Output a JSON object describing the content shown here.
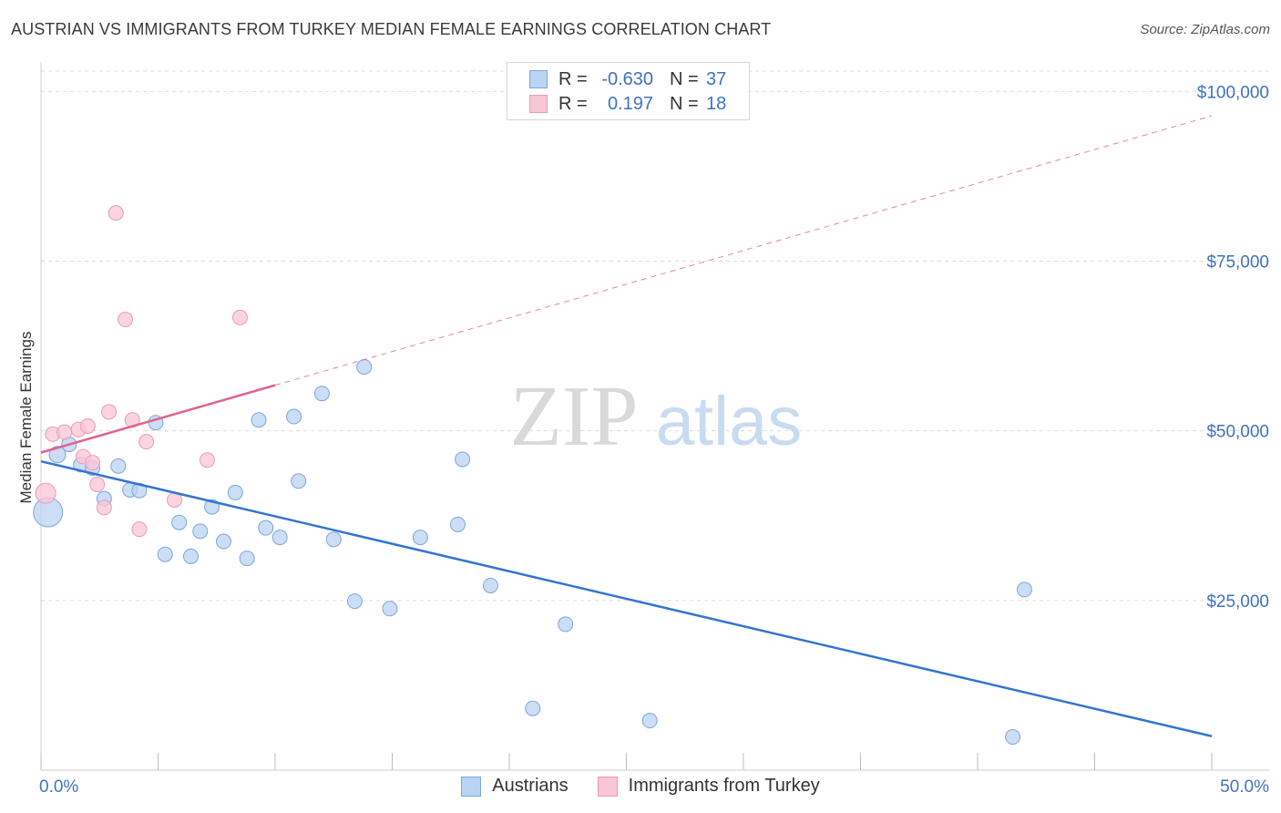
{
  "chart_data": {
    "type": "scatter",
    "title": "AUSTRIAN VS IMMIGRANTS FROM TURKEY MEDIAN FEMALE EARNINGS CORRELATION CHART",
    "source": "Source: ZipAtlas.com",
    "ylabel": "Median Female Earnings",
    "xlabel": "",
    "xlim": [
      0,
      50
    ],
    "ylim": [
      0,
      103000
    ],
    "x_tick_labels": [
      "0.0%",
      "50.0%"
    ],
    "y_ticks": [
      25000,
      50000,
      75000,
      100000
    ],
    "y_tick_labels": [
      "$25,000",
      "$50,000",
      "$75,000",
      "$100,000"
    ],
    "watermark": {
      "zip": "ZIP",
      "atlas": "atlas"
    },
    "legend": {
      "r_label": "R =",
      "n_label": "N =",
      "entries": [
        {
          "name": "Austrians",
          "r": "-0.630",
          "n": "37"
        },
        {
          "name": "Immigrants from Turkey",
          "r": "0.197",
          "n": "18"
        }
      ]
    },
    "colors": {
      "austrians_fill": "#b9d3f2",
      "austrians_stroke": "#7ea6dc",
      "austrians_line": "#3375d1",
      "turkey_fill": "#f9c6d6",
      "turkey_stroke": "#eb9ab5",
      "turkey_line": "#e0648e",
      "axis_text": "#3f72c2",
      "grid": "#dddddd"
    },
    "series": [
      {
        "name": "Austrians",
        "trend": {
          "x0": 0,
          "y0": 45500,
          "x1": 50,
          "y1": 5000,
          "style": "solid"
        },
        "points": [
          {
            "x": 0.3,
            "y": 38000,
            "r": 16
          },
          {
            "x": 0.7,
            "y": 46500,
            "r": 9
          },
          {
            "x": 1.2,
            "y": 48000,
            "r": 8
          },
          {
            "x": 1.7,
            "y": 45000,
            "r": 8
          },
          {
            "x": 2.2,
            "y": 44500,
            "r": 8
          },
          {
            "x": 2.7,
            "y": 40000,
            "r": 8
          },
          {
            "x": 3.3,
            "y": 44800,
            "r": 8
          },
          {
            "x": 3.8,
            "y": 41300,
            "r": 8
          },
          {
            "x": 4.2,
            "y": 41200,
            "r": 8
          },
          {
            "x": 4.9,
            "y": 51200,
            "r": 8
          },
          {
            "x": 5.3,
            "y": 31800,
            "r": 8
          },
          {
            "x": 5.9,
            "y": 36500,
            "r": 8
          },
          {
            "x": 6.4,
            "y": 31500,
            "r": 8
          },
          {
            "x": 6.8,
            "y": 35200,
            "r": 8
          },
          {
            "x": 7.3,
            "y": 38800,
            "r": 8
          },
          {
            "x": 7.8,
            "y": 33700,
            "r": 8
          },
          {
            "x": 8.3,
            "y": 40900,
            "r": 8
          },
          {
            "x": 8.8,
            "y": 31200,
            "r": 8
          },
          {
            "x": 9.3,
            "y": 51600,
            "r": 8
          },
          {
            "x": 9.6,
            "y": 35700,
            "r": 8
          },
          {
            "x": 10.2,
            "y": 34300,
            "r": 8
          },
          {
            "x": 10.8,
            "y": 52100,
            "r": 8
          },
          {
            "x": 11.0,
            "y": 42600,
            "r": 8
          },
          {
            "x": 12.0,
            "y": 55500,
            "r": 8
          },
          {
            "x": 12.5,
            "y": 34000,
            "r": 8
          },
          {
            "x": 13.4,
            "y": 24900,
            "r": 8
          },
          {
            "x": 13.8,
            "y": 59400,
            "r": 8
          },
          {
            "x": 14.9,
            "y": 23800,
            "r": 8
          },
          {
            "x": 16.2,
            "y": 34300,
            "r": 8
          },
          {
            "x": 17.8,
            "y": 36200,
            "r": 8
          },
          {
            "x": 18.0,
            "y": 45800,
            "r": 8
          },
          {
            "x": 19.2,
            "y": 27200,
            "r": 8
          },
          {
            "x": 21.0,
            "y": 9100,
            "r": 8
          },
          {
            "x": 22.4,
            "y": 21500,
            "r": 8
          },
          {
            "x": 26.0,
            "y": 7300,
            "r": 8
          },
          {
            "x": 41.5,
            "y": 4900,
            "r": 8
          },
          {
            "x": 42.0,
            "y": 26600,
            "r": 8
          }
        ]
      },
      {
        "name": "Immigrants from Turkey",
        "trend": {
          "x0": 0,
          "y0": 46800,
          "x1": 50,
          "y1": 96400,
          "solid_until": 10,
          "style": "solid-then-dashed"
        },
        "points": [
          {
            "x": 0.2,
            "y": 40800,
            "r": 11
          },
          {
            "x": 0.5,
            "y": 49500,
            "r": 8
          },
          {
            "x": 1.0,
            "y": 49800,
            "r": 8
          },
          {
            "x": 1.6,
            "y": 50200,
            "r": 8
          },
          {
            "x": 1.8,
            "y": 46200,
            "r": 8
          },
          {
            "x": 2.0,
            "y": 50700,
            "r": 8
          },
          {
            "x": 2.2,
            "y": 45300,
            "r": 8
          },
          {
            "x": 2.4,
            "y": 42100,
            "r": 8
          },
          {
            "x": 2.7,
            "y": 38700,
            "r": 8
          },
          {
            "x": 2.9,
            "y": 52800,
            "r": 8
          },
          {
            "x": 3.2,
            "y": 82100,
            "r": 8
          },
          {
            "x": 3.6,
            "y": 66400,
            "r": 8
          },
          {
            "x": 3.9,
            "y": 51600,
            "r": 8
          },
          {
            "x": 4.2,
            "y": 35500,
            "r": 8
          },
          {
            "x": 4.5,
            "y": 48400,
            "r": 8
          },
          {
            "x": 5.7,
            "y": 39800,
            "r": 8
          },
          {
            "x": 7.1,
            "y": 45700,
            "r": 8
          },
          {
            "x": 8.5,
            "y": 66700,
            "r": 8
          }
        ]
      }
    ]
  }
}
